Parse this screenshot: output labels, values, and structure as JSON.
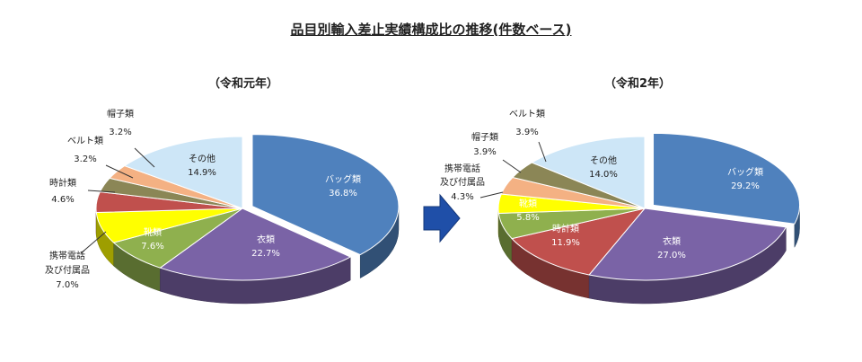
{
  "title": "品目別輸入差止実績構成比の推移(件数ベース)",
  "chart_data": [
    {
      "type": "pie",
      "title": "（令和元年）",
      "slices": [
        {
          "name": "バッグ類",
          "value": 36.8,
          "label": "36.8%",
          "color": "#4f81bd"
        },
        {
          "name": "衣類",
          "value": 22.7,
          "label": "22.7%",
          "color": "#7a63a6"
        },
        {
          "name": "靴類",
          "value": 7.6,
          "label": "7.6%",
          "color": "#8fb04e"
        },
        {
          "name": "携帯電話及び付属品",
          "value": 7.0,
          "label": "7.0%",
          "color": "#ffff00"
        },
        {
          "name": "時計類",
          "value": 4.6,
          "label": "4.6%",
          "color": "#c0504d"
        },
        {
          "name": "ベルト類",
          "value": 3.2,
          "label": "3.2%",
          "color": "#8b8656"
        },
        {
          "name": "帽子類",
          "value": 3.2,
          "label": "3.2%",
          "color": "#f4b183"
        },
        {
          "name": "その他",
          "value": 14.9,
          "label": "14.9%",
          "color": "#cde6f7"
        }
      ]
    },
    {
      "type": "pie",
      "title": "（令和2年）",
      "slices": [
        {
          "name": "バッグ類",
          "value": 29.2,
          "label": "29.2%",
          "color": "#4f81bd"
        },
        {
          "name": "衣類",
          "value": 27.0,
          "label": "27.0%",
          "color": "#7a63a6"
        },
        {
          "name": "時計類",
          "value": 11.9,
          "label": "11.9%",
          "color": "#c0504d"
        },
        {
          "name": "靴類",
          "value": 5.8,
          "label": "5.8%",
          "color": "#8fb04e"
        },
        {
          "name": "携帯電話及び付属品",
          "value": 4.3,
          "label": "4.3%",
          "color": "#ffff00"
        },
        {
          "name": "帽子類",
          "value": 3.9,
          "label": "3.9%",
          "color": "#f4b183"
        },
        {
          "name": "ベルト類",
          "value": 3.9,
          "label": "3.9%",
          "color": "#8b8656"
        },
        {
          "name": "その他",
          "value": 14.0,
          "label": "14.0%",
          "color": "#cde6f7"
        }
      ]
    }
  ]
}
